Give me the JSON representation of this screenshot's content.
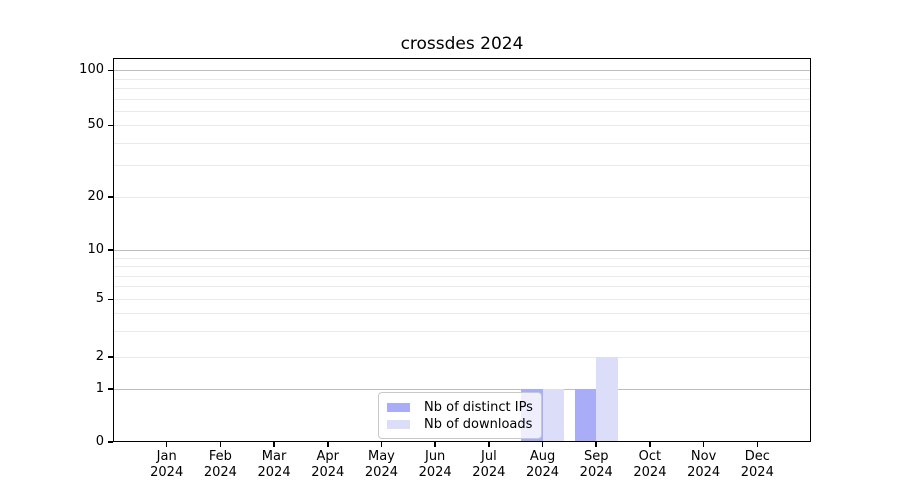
{
  "title": "crossdes 2024",
  "chart_data": {
    "type": "bar",
    "title": "crossdes 2024",
    "categories": [
      "Jan 2024",
      "Feb 2024",
      "Mar 2024",
      "Apr 2024",
      "May 2024",
      "Jun 2024",
      "Jul 2024",
      "Aug 2024",
      "Sep 2024",
      "Oct 2024",
      "Nov 2024",
      "Dec 2024"
    ],
    "series": [
      {
        "name": "Nb of distinct IPs",
        "color": "#a9acf6",
        "values": [
          0,
          0,
          0,
          0,
          0,
          0,
          0,
          1,
          1,
          0,
          0,
          0
        ]
      },
      {
        "name": "Nb of downloads",
        "color": "#dcddf8",
        "values": [
          0,
          0,
          0,
          0,
          0,
          0,
          0,
          1,
          2,
          0,
          0,
          0
        ]
      }
    ],
    "y_scale": "symlog",
    "ylim": [
      0,
      140
    ],
    "y_ticks": [
      0,
      1,
      2,
      5,
      10,
      20,
      50,
      100
    ],
    "y_major_gridlines": [
      1,
      10,
      100
    ],
    "y_minor_gridlines": [
      2,
      3,
      4,
      5,
      6,
      7,
      8,
      9,
      20,
      30,
      40,
      50,
      60,
      70,
      80,
      90
    ],
    "grid": true,
    "legend_position": "lower-center-inside",
    "xlabel": "",
    "ylabel": ""
  },
  "colors": {
    "background": "#ffffff",
    "axis": "#000000",
    "major_grid": "#bdbdbd",
    "minor_grid": "#e9e9e9",
    "distinct_ips_bar": "#a9acf6",
    "downloads_bar": "#dcddf8"
  }
}
